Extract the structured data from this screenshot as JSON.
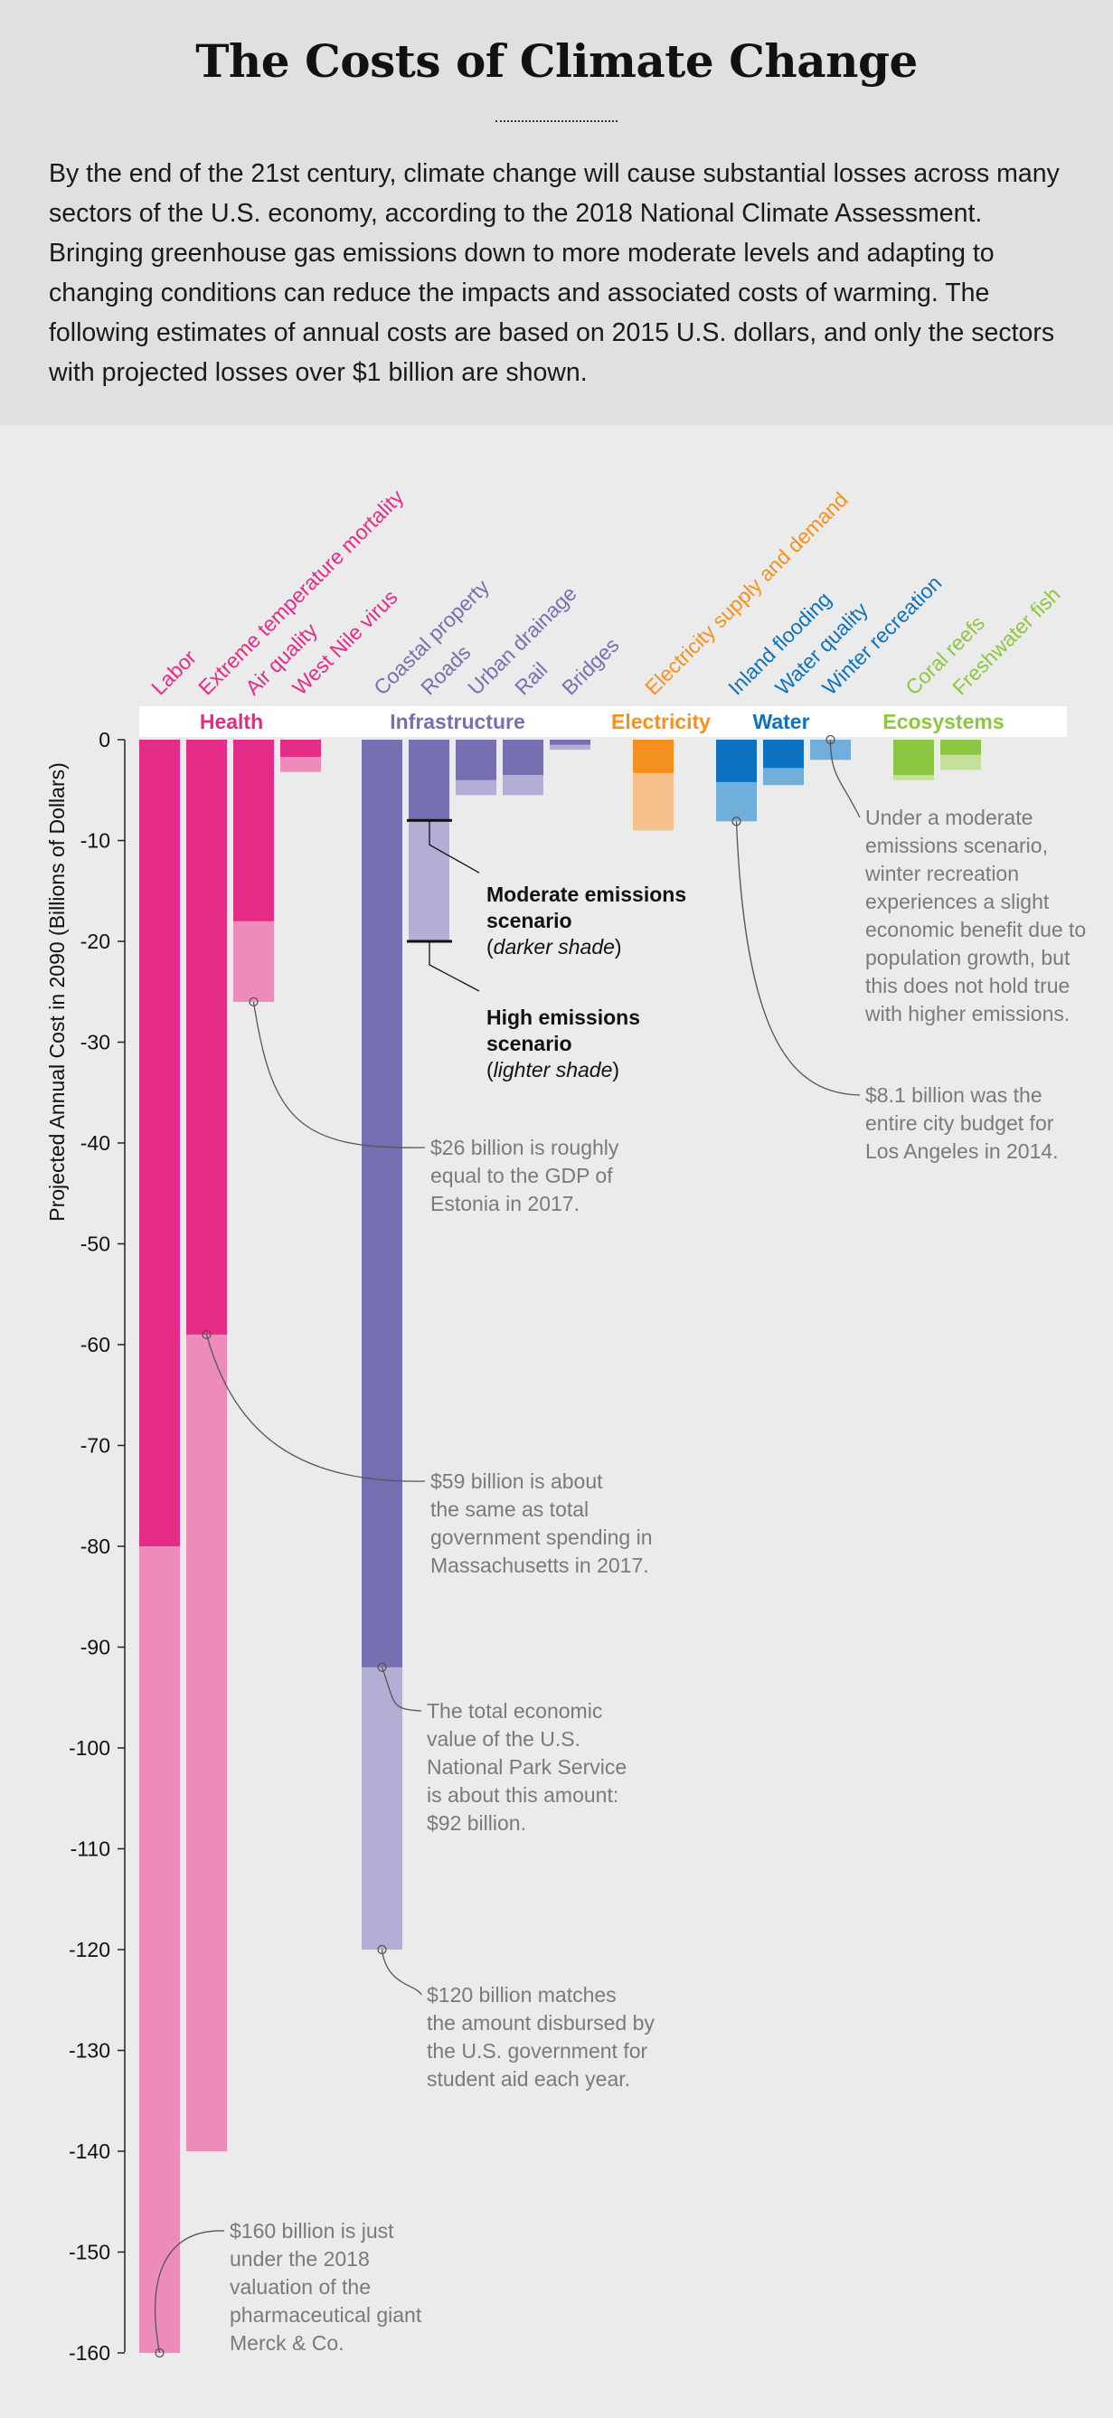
{
  "header": {
    "title": "The Costs of Climate Change",
    "intro": "By the end of the 21st century, climate change will cause substantial losses across many sectors of the U.S. economy, according to the 2018 National Climate Assessment. Bringing greenhouse gas emissions down to more moderate levels and adapting to changing conditions can reduce the impacts and associated costs of warming. The following estimates of annual costs are based on 2015 U.S. dollars, and only the sectors with projected losses over $1 billion are shown."
  },
  "chart_data": {
    "type": "bar",
    "ylabel": "Projected Annual Cost in 2090 (Billions of Dollars)",
    "ylim": [
      -160,
      0
    ],
    "yticks": [
      0,
      -10,
      -20,
      -30,
      -40,
      -50,
      -60,
      -70,
      -80,
      -90,
      -100,
      -110,
      -120,
      -130,
      -140,
      -150,
      -160
    ],
    "grid": false,
    "series_names": {
      "moderate": "Moderate emissions scenario",
      "high": "High emissions scenario"
    },
    "groups": [
      {
        "name": "Health",
        "color": "#e42b86",
        "light": "#ed8bbb",
        "sectors": [
          {
            "label": "Labor",
            "moderate": -80,
            "high": -160
          },
          {
            "label": "Extreme temperature mortality",
            "moderate": -59,
            "high": -140
          },
          {
            "label": "Air quality",
            "moderate": -18,
            "high": -26
          },
          {
            "label": "West Nile virus",
            "moderate": -1.7,
            "high": -3.2
          }
        ]
      },
      {
        "name": "Infrastructure",
        "color": "#7670b2",
        "light": "#b2aed4",
        "sectors": [
          {
            "label": "Coastal property",
            "moderate": -92,
            "high": -120
          },
          {
            "label": "Roads",
            "moderate": -8,
            "high": -20
          },
          {
            "label": "Urban drainage",
            "moderate": -4,
            "high": -5.5
          },
          {
            "label": "Rail",
            "moderate": -3.5,
            "high": -5.5
          },
          {
            "label": "Bridges",
            "moderate": -0.5,
            "high": -1
          }
        ]
      },
      {
        "name": "Electricity",
        "color": "#f5901f",
        "light": "#f6c08a",
        "sectors": [
          {
            "label": "Electricity supply and demand",
            "moderate": -3.3,
            "high": -9
          }
        ]
      },
      {
        "name": "Water",
        "color": "#0d72c1",
        "light": "#70aedb",
        "sectors": [
          {
            "label": "Inland flooding",
            "moderate": -4.2,
            "high": -8.1
          },
          {
            "label": "Water quality",
            "moderate": -2.8,
            "high": -4.5
          },
          {
            "label": "Winter recreation",
            "moderate": 0,
            "high": -2
          }
        ]
      },
      {
        "name": "Ecosystems",
        "color": "#8dc641",
        "light": "#c4e09a",
        "sectors": [
          {
            "label": "Coral reefs",
            "moderate": -3.5,
            "high": -4
          },
          {
            "label": "Freshwater fish",
            "moderate": -1.5,
            "high": -3
          }
        ]
      }
    ],
    "legend": {
      "moderate_bold": "Moderate emissions scenario",
      "moderate_note": "(darker shade)",
      "high_bold": "High emissions scenario",
      "high_note": "(lighter shade)"
    },
    "annotations": [
      {
        "value": -26,
        "text": "$26 billion is roughly equal to the GDP of Estonia in 2017."
      },
      {
        "value": -59,
        "text": "$59 billion is about the same as total government spending in Massachusetts in 2017."
      },
      {
        "value": -92,
        "text": "The total economic value of the U.S. National Park Service is about this amount: $92 billion."
      },
      {
        "value": -120,
        "text": "$120 billion matches the amount disbursed by the U.S. government for student aid each year."
      },
      {
        "value": -160,
        "text": "$160 billion is just under the 2018 valuation of the pharmaceutical giant Merck & Co."
      },
      {
        "value": -8.1,
        "text": "$8.1 billion was the entire city budget for Los Angeles in 2014."
      },
      {
        "value": 0,
        "text": "Under a moderate emissions scenario, winter recreation experiences a slight economic benefit due to population growth, but this does not hold true with higher emissions."
      }
    ]
  }
}
